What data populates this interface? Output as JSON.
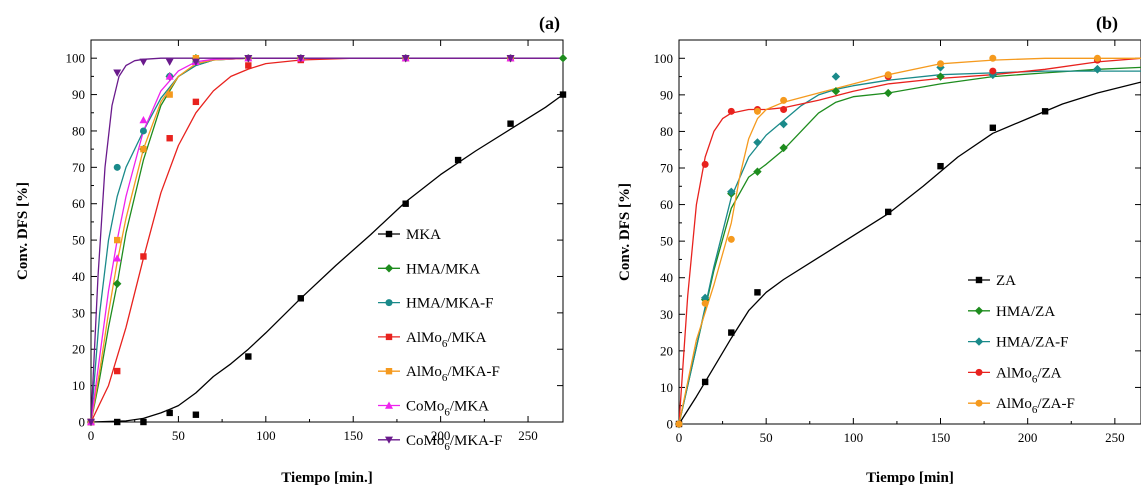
{
  "chart_data": [
    {
      "type": "line",
      "panel_label": "(a)",
      "xlabel": "Tiempo [min.]",
      "ylabel": "Conv. DFS [%]",
      "xlim": [
        0,
        270
      ],
      "ylim": [
        0,
        105
      ],
      "xticks": [
        0,
        50,
        100,
        150,
        200,
        250
      ],
      "yticks": [
        0,
        10,
        20,
        30,
        40,
        50,
        60,
        70,
        80,
        90,
        100
      ],
      "legend_position": "lower-right",
      "series": [
        {
          "name": "MKA",
          "name_main": "MKA",
          "name_sub": "",
          "name_tail": "",
          "color": "#000000",
          "marker": "square",
          "x": [
            0,
            15,
            30,
            45,
            60,
            90,
            120,
            180,
            210,
            240,
            270
          ],
          "y": [
            0,
            0,
            0,
            2.5,
            2,
            18,
            34,
            60,
            72,
            82,
            90
          ],
          "curve_x": [
            0,
            20,
            30,
            40,
            45,
            50,
            60,
            70,
            80,
            90,
            100,
            120,
            140,
            160,
            180,
            200,
            220,
            240,
            260,
            270
          ],
          "curve_y": [
            0,
            0.3,
            1,
            2.5,
            3.5,
            4.5,
            8,
            12.5,
            16,
            20,
            24.5,
            34,
            43,
            51.5,
            60.5,
            68,
            74.5,
            80.5,
            86.5,
            90
          ]
        },
        {
          "name": "HMA/MKA",
          "name_main": "HMA/MKA",
          "name_sub": "",
          "name_tail": "",
          "color": "#1e8c1e",
          "marker": "diamond",
          "x": [
            0,
            15,
            30,
            45,
            60,
            90,
            120,
            180,
            240,
            270
          ],
          "y": [
            0,
            38,
            75,
            95,
            100,
            100,
            100,
            100,
            100,
            100
          ],
          "curve_x": [
            0,
            5,
            10,
            15,
            20,
            30,
            40,
            50,
            60,
            70,
            90,
            120,
            270
          ],
          "curve_y": [
            0,
            12,
            26,
            38,
            52,
            72,
            87,
            95,
            98,
            99.5,
            100,
            100,
            100
          ]
        },
        {
          "name": "HMA/MKA-F",
          "name_main": "HMA/MKA-F",
          "name_sub": "",
          "name_tail": "",
          "color": "#1a8a8a",
          "marker": "circle",
          "x": [
            0,
            15,
            30,
            45,
            60,
            90,
            120,
            180,
            240
          ],
          "y": [
            0,
            70,
            80,
            95,
            99,
            100,
            100,
            100,
            100
          ],
          "curve_x": [
            0,
            5,
            10,
            15,
            20,
            30,
            40,
            50,
            60,
            70,
            90,
            120,
            270
          ],
          "curve_y": [
            0,
            30,
            50,
            62,
            70,
            80,
            89,
            95,
            98,
            99.5,
            100,
            100,
            100
          ]
        },
        {
          "name": "AlMo6/MKA",
          "name_main": "AlMo",
          "name_sub": "6",
          "name_tail": "/MKA",
          "color": "#e8221e",
          "marker": "square",
          "x": [
            0,
            15,
            30,
            45,
            60,
            90,
            120,
            180,
            240
          ],
          "y": [
            0,
            14,
            45.5,
            78,
            88,
            98,
            99.5,
            100,
            100
          ],
          "curve_x": [
            0,
            10,
            20,
            30,
            40,
            50,
            60,
            70,
            80,
            90,
            100,
            120,
            150,
            270
          ],
          "curve_y": [
            0,
            10,
            26,
            45,
            63,
            76,
            85,
            91,
            95,
            97,
            98.5,
            99.5,
            100,
            100
          ]
        },
        {
          "name": "AlMo6/MKA-F",
          "name_main": "AlMo",
          "name_sub": "6",
          "name_tail": "/MKA-F",
          "color": "#f59a1e",
          "marker": "square",
          "x": [
            0,
            15,
            30,
            45,
            60,
            90,
            120,
            180,
            240
          ],
          "y": [
            0,
            50,
            75,
            90,
            100,
            100,
            100,
            100,
            100
          ],
          "curve_x": [
            0,
            5,
            10,
            15,
            20,
            30,
            40,
            50,
            60,
            70,
            90,
            120,
            270
          ],
          "curve_y": [
            0,
            14,
            30,
            44,
            56,
            75,
            88,
            95,
            98.5,
            99.5,
            100,
            100,
            100
          ]
        },
        {
          "name": "CoMo6/MKA",
          "name_main": "CoMo",
          "name_sub": "6",
          "name_tail": "/MKA",
          "color": "#ee22ee",
          "marker": "triangle-up",
          "x": [
            0,
            15,
            30,
            45,
            60,
            90,
            120,
            180,
            240
          ],
          "y": [
            0,
            45,
            83,
            95,
            99,
            100,
            100,
            100,
            100
          ],
          "curve_x": [
            0,
            5,
            10,
            15,
            20,
            30,
            40,
            50,
            60,
            70,
            90,
            120,
            270
          ],
          "curve_y": [
            0,
            18,
            36,
            50,
            62,
            80,
            91,
            96.5,
            99,
            99.7,
            100,
            100,
            100
          ]
        },
        {
          "name": "CoMo6/MKA-F",
          "name_main": "CoMo",
          "name_sub": "6",
          "name_tail": "/MKA-F",
          "color": "#6a1a8c",
          "marker": "triangle-down",
          "x": [
            0,
            15,
            30,
            45,
            60,
            90,
            120,
            180,
            240
          ],
          "y": [
            0,
            96,
            99,
            99,
            99,
            100,
            100,
            100,
            100
          ],
          "curve_x": [
            0,
            4,
            8,
            12,
            16,
            20,
            25,
            30,
            40,
            60,
            270
          ],
          "curve_y": [
            0,
            40,
            70,
            87,
            95,
            98,
            99.3,
            99.7,
            100,
            100,
            100
          ]
        }
      ]
    },
    {
      "type": "line",
      "panel_label": "(b)",
      "xlabel": "Tiempo [min]",
      "ylabel": "Conv. DFS [%]",
      "xlim": [
        0,
        265
      ],
      "ylim": [
        0,
        105
      ],
      "xticks": [
        0,
        50,
        100,
        150,
        200,
        250
      ],
      "yticks": [
        0,
        10,
        20,
        30,
        40,
        50,
        60,
        70,
        80,
        90,
        100
      ],
      "legend_position": "lower-right",
      "series": [
        {
          "name": "ZA",
          "name_main": "ZA",
          "name_sub": "",
          "name_tail": "",
          "color": "#000000",
          "marker": "square",
          "x": [
            0,
            15,
            30,
            45,
            120,
            150,
            180,
            210
          ],
          "y": [
            0,
            11.5,
            25,
            36,
            58,
            70.5,
            81,
            85.5
          ],
          "curve_x": [
            0,
            10,
            20,
            30,
            40,
            50,
            60,
            80,
            100,
            120,
            140,
            160,
            180,
            200,
            220,
            240,
            265
          ],
          "curve_y": [
            0,
            7.5,
            15.5,
            23.5,
            31,
            36,
            39.5,
            45.5,
            51.5,
            57.5,
            65,
            73,
            79.5,
            83.5,
            87.5,
            90.5,
            93.5
          ]
        },
        {
          "name": "HMA/ZA",
          "name_main": "HMA/ZA",
          "name_sub": "",
          "name_tail": "",
          "color": "#1e8c1e",
          "marker": "diamond",
          "x": [
            0,
            15,
            30,
            45,
            60,
            90,
            120,
            150,
            180,
            240
          ],
          "y": [
            0,
            34,
            63,
            69,
            75.5,
            91,
            90.5,
            95,
            95.5,
            97
          ],
          "curve_x": [
            0,
            10,
            20,
            30,
            40,
            50,
            60,
            70,
            80,
            90,
            100,
            120,
            150,
            180,
            210,
            240,
            265
          ],
          "curve_y": [
            0,
            21,
            42,
            59,
            67.5,
            71,
            75,
            80,
            85,
            88,
            89.5,
            90.5,
            93,
            95,
            96,
            97,
            97.5
          ]
        },
        {
          "name": "HMA/ZA-F",
          "name_main": "HMA/ZA-F",
          "name_sub": "",
          "name_tail": "",
          "color": "#1a8a8a",
          "marker": "diamond",
          "x": [
            0,
            15,
            30,
            45,
            60,
            90,
            150,
            180,
            240
          ],
          "y": [
            0,
            34.5,
            63.5,
            77,
            82,
            95,
            97.5,
            95.5,
            97
          ],
          "curve_x": [
            0,
            10,
            20,
            30,
            40,
            50,
            60,
            70,
            80,
            90,
            100,
            120,
            150,
            180,
            210,
            240,
            265
          ],
          "curve_y": [
            0,
            21,
            43,
            62,
            73,
            79,
            83,
            87,
            90,
            91.5,
            92.5,
            94,
            95.5,
            96,
            96.5,
            96.5,
            96.5
          ]
        },
        {
          "name": "AlMo6/ZA",
          "name_main": "AlMo",
          "name_sub": "6",
          "name_tail": "/ZA",
          "color": "#e8221e",
          "marker": "circle",
          "x": [
            0,
            15,
            30,
            45,
            60,
            120,
            180,
            240
          ],
          "y": [
            0,
            71,
            85.5,
            86,
            86,
            95,
            96.5,
            99.5
          ],
          "curve_x": [
            0,
            5,
            10,
            15,
            20,
            25,
            30,
            40,
            50,
            60,
            80,
            100,
            120,
            150,
            180,
            210,
            240,
            265
          ],
          "curve_y": [
            0,
            35,
            60,
            73,
            80,
            83.5,
            85,
            86,
            86,
            86.5,
            88.5,
            91,
            93,
            94.5,
            95.5,
            97,
            99,
            100
          ]
        },
        {
          "name": "AlMo6/ZA-F",
          "name_main": "AlMo",
          "name_sub": "6",
          "name_tail": "/ZA-F",
          "color": "#f59a1e",
          "marker": "circle",
          "x": [
            0,
            15,
            30,
            45,
            60,
            120,
            150,
            180,
            240
          ],
          "y": [
            0,
            33,
            50.5,
            85.5,
            88.5,
            95.5,
            98.5,
            100,
            100
          ],
          "curve_x": [
            0,
            10,
            20,
            30,
            35,
            40,
            45,
            50,
            60,
            80,
            100,
            120,
            150,
            180,
            210,
            240,
            265
          ],
          "curve_y": [
            0,
            23,
            38,
            55,
            68,
            78,
            83.5,
            86,
            88,
            90.5,
            93,
            95.5,
            98.5,
            99.5,
            100,
            100,
            100
          ]
        }
      ]
    }
  ]
}
